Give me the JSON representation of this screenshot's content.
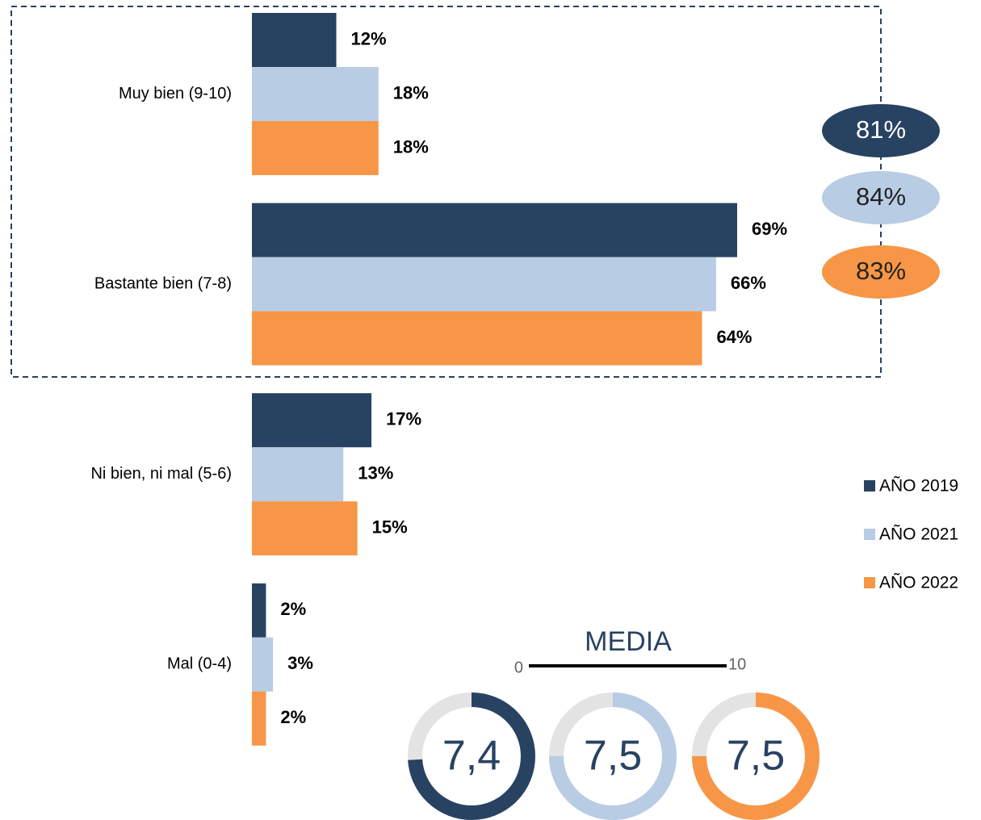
{
  "chart_data": {
    "type": "bar",
    "orientation": "horizontal",
    "categories": [
      "Muy bien (9-10)",
      "Bastante bien (7-8)",
      "Ni bien, ni mal (5-6)",
      "Mal (0-4)"
    ],
    "series": [
      {
        "name": "AÑO 2019",
        "color": "#284262",
        "values": [
          12,
          69,
          17,
          2
        ],
        "value_labels": [
          "12%",
          "69%",
          "17%",
          "2%"
        ]
      },
      {
        "name": "AÑO 2021",
        "color": "#b8cce4",
        "values": [
          18,
          66,
          13,
          3
        ],
        "value_labels": [
          "18%",
          "66%",
          "13%",
          "3%"
        ]
      },
      {
        "name": "AÑO 2022",
        "color": "#f79646",
        "values": [
          18,
          64,
          15,
          2
        ],
        "value_labels": [
          "18%",
          "64%",
          "15%",
          "2%"
        ]
      }
    ],
    "summary": {
      "values": [
        81,
        84,
        83
      ],
      "value_labels": [
        "81%",
        "84%",
        "83%"
      ]
    },
    "gauge": {
      "title": "MEDIA",
      "range": [
        0,
        10
      ],
      "values": [
        7.4,
        7.5,
        7.5
      ],
      "value_labels": [
        "7,4",
        "7,5",
        "7,5"
      ],
      "track_color": "#e3e3e3"
    },
    "legend": "right"
  }
}
